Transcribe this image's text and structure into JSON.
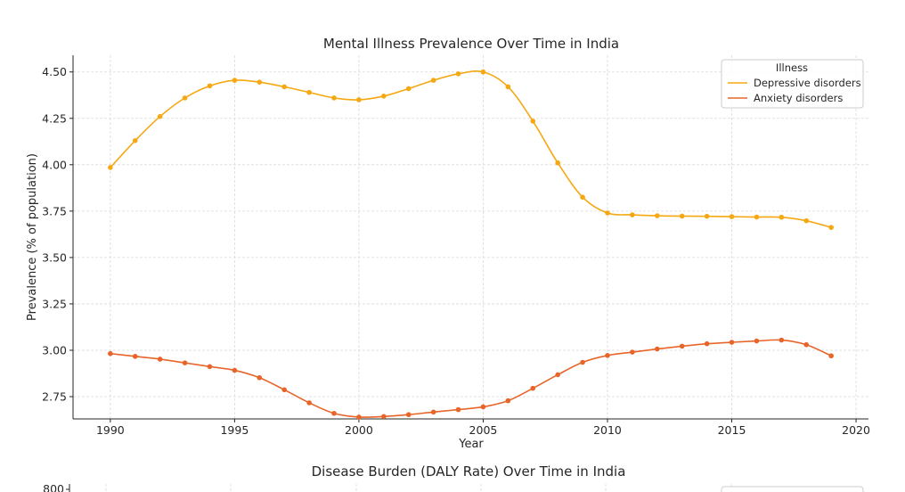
{
  "chart_data": [
    {
      "type": "line",
      "title": "Mental Illness Prevalence Over Time in India",
      "xlabel": "Year",
      "ylabel": "Prevalence (% of population)",
      "xlim": [
        1988.5,
        2020.5
      ],
      "ylim": [
        2.63,
        4.59
      ],
      "xticks": [
        1990,
        1995,
        2000,
        2005,
        2010,
        2015,
        2020
      ],
      "xtick_labels": [
        "1990",
        "1995",
        "2000",
        "2005",
        "2010",
        "2015",
        "2020"
      ],
      "yticks": [
        2.75,
        3.0,
        3.25,
        3.5,
        3.75,
        4.0,
        4.25,
        4.5
      ],
      "ytick_labels": [
        "2.75",
        "3.00",
        "3.25",
        "3.50",
        "3.75",
        "4.00",
        "4.25",
        "4.50"
      ],
      "grid": true,
      "legend": {
        "title": "Illness",
        "placement": "top-right"
      },
      "x": [
        1990,
        1991,
        1992,
        1993,
        1994,
        1995,
        1996,
        1997,
        1998,
        1999,
        2000,
        2001,
        2002,
        2003,
        2004,
        2005,
        2006,
        2007,
        2008,
        2009,
        2010,
        2011,
        2012,
        2013,
        2014,
        2015,
        2016,
        2017,
        2018,
        2019
      ],
      "series": [
        {
          "name": "Depressive disorders",
          "color": "#f5a811",
          "values": [
            3.985,
            4.13,
            4.26,
            4.36,
            4.425,
            4.455,
            4.445,
            4.42,
            4.39,
            4.36,
            4.35,
            4.37,
            4.41,
            4.455,
            4.49,
            4.5,
            4.42,
            4.235,
            4.01,
            3.825,
            3.74,
            3.73,
            3.725,
            3.723,
            3.722,
            3.72,
            3.718,
            3.717,
            3.698,
            3.662
          ]
        },
        {
          "name": "Anxiety disorders",
          "color": "#e8652a",
          "values": [
            2.982,
            2.967,
            2.952,
            2.932,
            2.912,
            2.892,
            2.852,
            2.787,
            2.717,
            2.66,
            2.64,
            2.643,
            2.653,
            2.667,
            2.68,
            2.695,
            2.728,
            2.795,
            2.868,
            2.935,
            2.972,
            2.99,
            3.007,
            3.022,
            3.035,
            3.043,
            3.05,
            3.055,
            3.03,
            2.97
          ]
        }
      ]
    },
    {
      "type": "line",
      "title": "Disease Burden (DALY Rate) Over Time in India",
      "ytick_labels": [
        "800"
      ]
    }
  ]
}
